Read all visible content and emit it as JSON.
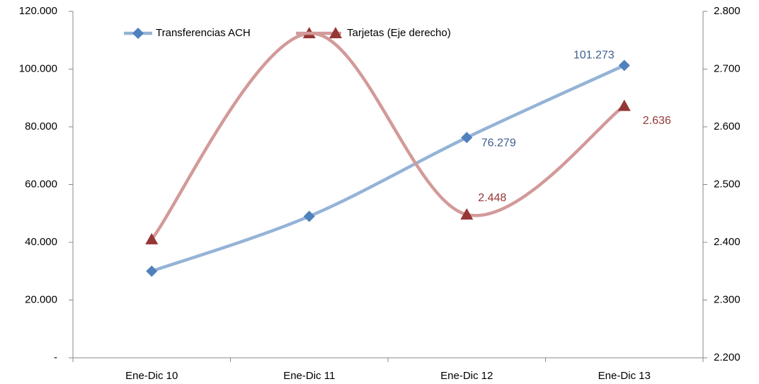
{
  "chart_data": {
    "type": "line",
    "categories": [
      "Ene-Dic 10",
      "Ene-Dic 11",
      "Ene-Dic 12",
      "Ene-Dic 13"
    ],
    "series": [
      {
        "name": "Transferencias ACH",
        "color": "#95b3d7",
        "marker_color": "#4f81bd",
        "marker": "diamond",
        "axis": "y",
        "values": [
          30000,
          49000,
          76279,
          101273
        ],
        "value_labels": [
          null,
          null,
          "76.279",
          "101.273"
        ],
        "label_color": "#3f5f8f"
      },
      {
        "name": "Tarjetas (Eje derecho)",
        "color": "#d29a99",
        "marker_color": "#953735",
        "marker": "triangle",
        "axis": "y2",
        "values": [
          2405,
          2762,
          2448,
          2636
        ],
        "value_labels": [
          null,
          null,
          "2.448",
          "2.636"
        ],
        "label_color": "#953735"
      }
    ],
    "ylim": [
      0,
      120000
    ],
    "yticks": [
      {
        "value": 0,
        "label": "-"
      },
      {
        "value": 20000,
        "label": "20.000"
      },
      {
        "value": 40000,
        "label": "40.000"
      },
      {
        "value": 60000,
        "label": "60.000"
      },
      {
        "value": 80000,
        "label": "80.000"
      },
      {
        "value": 100000,
        "label": "100.000"
      },
      {
        "value": 120000,
        "label": "120.000"
      }
    ],
    "y2lim": [
      2200,
      2800
    ],
    "y2ticks": [
      {
        "value": 2200,
        "label": "2.200"
      },
      {
        "value": 2300,
        "label": "2.300"
      },
      {
        "value": 2400,
        "label": "2.400"
      },
      {
        "value": 2500,
        "label": "2.500"
      },
      {
        "value": 2600,
        "label": "2.600"
      },
      {
        "value": 2700,
        "label": "2.700"
      },
      {
        "value": 2800,
        "label": "2.800"
      }
    ],
    "smooth": true,
    "legend": "top"
  }
}
